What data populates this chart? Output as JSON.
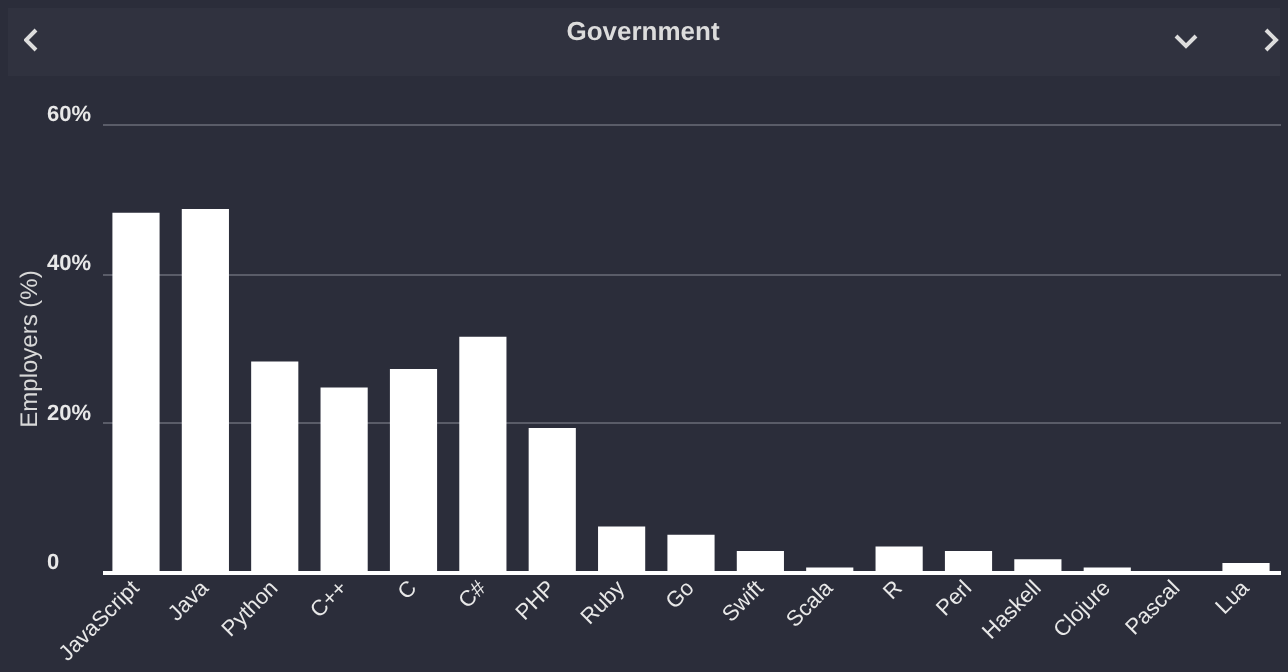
{
  "chart_data": {
    "type": "bar",
    "title": "Government",
    "ylabel": "Employers (%)",
    "categories": [
      "JavaScript",
      "Java",
      "Python",
      "C++",
      "C",
      "C#",
      "PHP",
      "Ruby",
      "Go",
      "Swift",
      "Scala",
      "R",
      "Perl",
      "Haskell",
      "Clojure",
      "Pascal",
      "Lua"
    ],
    "values": [
      48.1,
      48.6,
      28.2,
      24.7,
      27.2,
      31.5,
      19.3,
      6.1,
      5.0,
      2.8,
      0.6,
      3.4,
      2.8,
      1.7,
      0.6,
      0,
      1.2
    ],
    "color": "#ffffff",
    "ylim": [
      0,
      60
    ],
    "yticks": [
      0,
      {
        "value": 20,
        "label": "20%"
      },
      {
        "value": 40,
        "label": "40%"
      },
      {
        "value": 60,
        "label": "60%"
      }
    ],
    "grid": "y"
  }
}
